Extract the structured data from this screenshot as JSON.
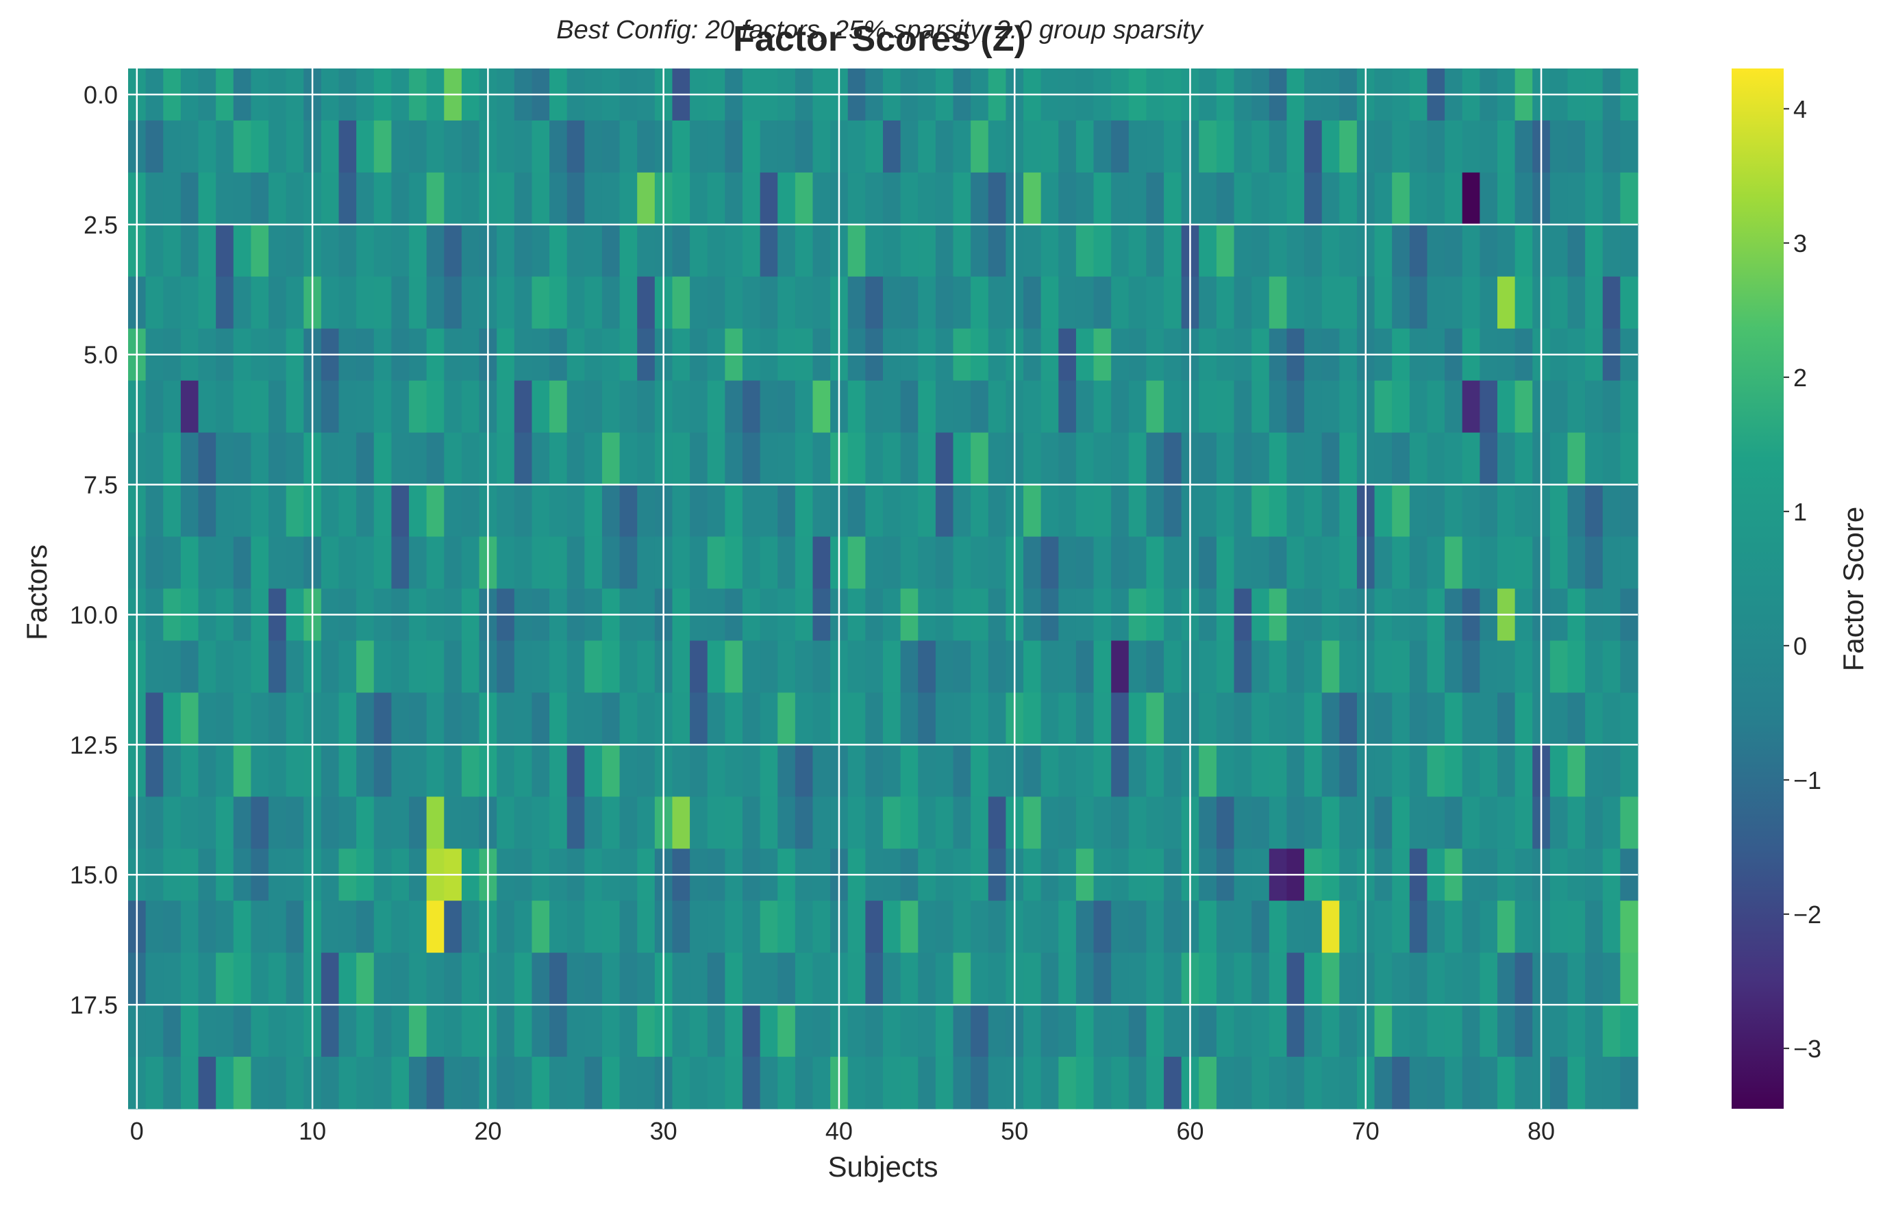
{
  "chart_data": {
    "type": "heatmap",
    "title": "Factor Scores (Z)",
    "subtitle": "Best Config: 20 factors, 25% sparsity, 2.0 group sparsity",
    "xlabel": "Subjects",
    "ylabel": "Factors",
    "colorbar_label": "Factor Score",
    "colormap": "viridis",
    "n_rows": 20,
    "n_cols": 86,
    "xlim": [
      -0.5,
      85.5
    ],
    "ylim": [
      19.5,
      -0.5
    ],
    "clim": [
      -3.45,
      4.3
    ],
    "x_ticks": [
      0,
      10,
      20,
      30,
      40,
      50,
      60,
      70,
      80
    ],
    "x_tick_labels": [
      "0",
      "10",
      "20",
      "30",
      "40",
      "50",
      "60",
      "70",
      "80"
    ],
    "y_ticks": [
      0,
      2.5,
      5,
      7.5,
      10,
      12.5,
      15,
      17.5
    ],
    "y_tick_labels": [
      "0.0",
      "2.5",
      "5.0",
      "7.5",
      "10.0",
      "12.5",
      "15.0",
      "17.5"
    ],
    "colorbar_ticks": [
      -3,
      -2,
      -1,
      0,
      1,
      2,
      3,
      4
    ],
    "colorbar_tick_labels": [
      "−3",
      "−2",
      "−1",
      "0",
      "1",
      "2",
      "3",
      "4"
    ],
    "grid": true,
    "grid_color": "#ffffff",
    "highlighted_cells": [
      {
        "row": 2,
        "col": 76,
        "value": -3.4
      },
      {
        "row": 4,
        "col": 78,
        "value": 3.2
      },
      {
        "row": 6,
        "col": 3,
        "value": -2.6
      },
      {
        "row": 6,
        "col": 76,
        "value": -2.6
      },
      {
        "row": 6,
        "col": 39,
        "value": 2.4
      },
      {
        "row": 10,
        "col": 78,
        "value": 3.0
      },
      {
        "row": 11,
        "col": 56,
        "value": -2.8
      },
      {
        "row": 14,
        "col": 17,
        "value": 3.2
      },
      {
        "row": 14,
        "col": 31,
        "value": 3.0
      },
      {
        "row": 15,
        "col": 17,
        "value": 3.5
      },
      {
        "row": 15,
        "col": 18,
        "value": 3.6
      },
      {
        "row": 15,
        "col": 65,
        "value": -2.7
      },
      {
        "row": 15,
        "col": 66,
        "value": -2.9
      },
      {
        "row": 16,
        "col": 17,
        "value": 4.2
      },
      {
        "row": 16,
        "col": 68,
        "value": 4.1
      },
      {
        "row": 16,
        "col": 85,
        "value": 2.4
      },
      {
        "row": 17,
        "col": 85,
        "value": 2.3
      },
      {
        "row": 0,
        "col": 18,
        "value": 2.7
      },
      {
        "row": 2,
        "col": 29,
        "value": 2.8
      },
      {
        "row": 2,
        "col": 51,
        "value": 2.5
      }
    ]
  }
}
